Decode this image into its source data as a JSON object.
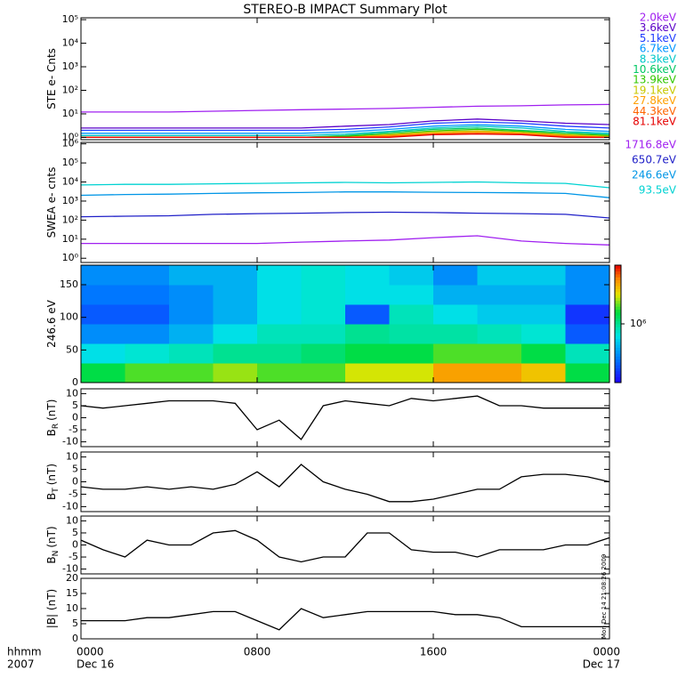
{
  "chart_data": {
    "title": "STEREO-B IMPACT Summary Plot",
    "xlim": [
      0,
      24
    ],
    "xticks": [
      {
        "value": 0,
        "label": "0000"
      },
      {
        "value": 8,
        "label": "0800"
      },
      {
        "value": 16,
        "label": "1600"
      },
      {
        "value": 24,
        "label": "0000"
      }
    ],
    "x_dates": [
      "Dec 16",
      null,
      null,
      "Dec 17"
    ],
    "x_label_top": "hhmm",
    "x_label_bottom": "2007",
    "annotation": "Mon Dec 14 21:08:26 2009",
    "panels": [
      {
        "type": "line",
        "ylabel": "STE e- Cnts",
        "log": true,
        "ylim": [
          0.8,
          120000
        ],
        "yticks": [
          {
            "value": 1,
            "label": "10⁰"
          },
          {
            "value": 10,
            "label": "10¹"
          },
          {
            "value": 100,
            "label": "10²"
          },
          {
            "value": 1000,
            "label": "10³"
          },
          {
            "value": 10000,
            "label": "10⁴"
          },
          {
            "value": 100000,
            "label": "10⁵"
          }
        ],
        "x": [
          0,
          2,
          4,
          6,
          8,
          10,
          12,
          14,
          16,
          18,
          20,
          22,
          24
        ],
        "series": [
          {
            "name": "2.0keV",
            "color": "#a020f0",
            "values": [
              12,
              12,
              12,
              13,
              14,
              15,
              16,
              17,
              19,
              21,
              22,
              24,
              25
            ]
          },
          {
            "name": "3.6keV",
            "color": "#5a00c8",
            "values": [
              2.5,
              2.5,
              2.5,
              2.5,
              2.5,
              2.5,
              3,
              3.5,
              5,
              6,
              5,
              4,
              3.5
            ]
          },
          {
            "name": "5.1keV",
            "color": "#1e3cff",
            "values": [
              2,
              2,
              2,
              2,
              2,
              2,
              2.2,
              2.8,
              4,
              4.5,
              4,
              3,
              2.5
            ]
          },
          {
            "name": "6.7keV",
            "color": "#0096ff",
            "values": [
              1.5,
              1.5,
              1.5,
              1.5,
              1.5,
              1.5,
              1.7,
              2.2,
              3,
              3.5,
              3,
              2.2,
              1.8
            ]
          },
          {
            "name": "8.3keV",
            "color": "#00c8c8",
            "values": [
              1.2,
              1.2,
              1.2,
              1.2,
              1.2,
              1.2,
              1.4,
              1.8,
              2.5,
              3,
              2.5,
              1.8,
              1.5
            ]
          },
          {
            "name": "10.6keV",
            "color": "#00c864",
            "values": [
              1,
              1,
              1,
              1,
              1,
              1,
              1.2,
              1.6,
              2.2,
              2.5,
              2,
              1.6,
              1.3
            ]
          },
          {
            "name": "13.9keV",
            "color": "#32c800",
            "values": [
              1,
              1,
              1,
              1,
              1,
              1,
              1.1,
              1.4,
              1.9,
              2.2,
              1.8,
              1.4,
              1.2
            ]
          },
          {
            "name": "19.1keV",
            "color": "#c8c800",
            "values": [
              1,
              1,
              1,
              1,
              1,
              1,
              1,
              1.3,
              1.7,
              1.9,
              1.6,
              1.3,
              1.1
            ]
          },
          {
            "name": "27.8keV",
            "color": "#ffa000",
            "values": [
              1,
              1,
              1,
              1,
              1,
              1,
              1,
              1.2,
              1.5,
              1.7,
              1.5,
              1.2,
              1
            ]
          },
          {
            "name": "44.3keV",
            "color": "#ff6400",
            "values": [
              1,
              1,
              1,
              1,
              1,
              1,
              1,
              1.1,
              1.4,
              1.5,
              1.4,
              1.1,
              1
            ]
          },
          {
            "name": "81.1keV",
            "color": "#e60000",
            "values": [
              1,
              1,
              1,
              1,
              1,
              1,
              1,
              1,
              1.3,
              1.4,
              1.3,
              1,
              1
            ]
          }
        ]
      },
      {
        "type": "line",
        "ylabel": "SWEA e- cnts",
        "log": true,
        "ylim": [
          0.6,
          1200000
        ],
        "yticks": [
          {
            "value": 1,
            "label": "10⁰"
          },
          {
            "value": 10,
            "label": "10¹"
          },
          {
            "value": 100,
            "label": "10²"
          },
          {
            "value": 1000,
            "label": "10³"
          },
          {
            "value": 10000,
            "label": "10⁴"
          },
          {
            "value": 100000,
            "label": "10⁵"
          },
          {
            "value": 1000000,
            "label": "10⁶"
          }
        ],
        "x": [
          0,
          2,
          4,
          6,
          8,
          10,
          12,
          14,
          16,
          18,
          20,
          22,
          24
        ],
        "series": [
          {
            "name": "1716.8eV",
            "color": "#a020f0",
            "values": [
              6,
              6,
              6,
              6,
              6,
              7,
              8,
              9,
              12,
              15,
              8,
              6,
              5
            ]
          },
          {
            "name": "650.7eV",
            "color": "#2020c8",
            "values": [
              150,
              160,
              170,
              200,
              220,
              230,
              250,
              260,
              250,
              230,
              220,
              200,
              130
            ]
          },
          {
            "name": "246.6eV",
            "color": "#0096e6",
            "values": [
              2000,
              2200,
              2300,
              2500,
              2700,
              2800,
              3000,
              3000,
              2900,
              2800,
              2700,
              2500,
              1500
            ]
          },
          {
            "name": "93.5eV",
            "color": "#00d2d2",
            "values": [
              7000,
              7500,
              7500,
              8000,
              8500,
              9000,
              9500,
              9000,
              9500,
              10000,
              9000,
              8500,
              5000
            ]
          }
        ]
      },
      {
        "type": "heatmap",
        "ylabel": "246.6 eV",
        "ylim": [
          0,
          180
        ],
        "yticks": [
          0,
          50,
          100,
          150
        ],
        "xbins": [
          0,
          2,
          4,
          6,
          8,
          10,
          12,
          14,
          16,
          18,
          20,
          22,
          24
        ],
        "ybins": [
          0,
          30,
          60,
          90,
          120,
          150,
          180
        ],
        "zlim": [
          100000,
          10000000
        ],
        "zlog": true,
        "zticks": [
          {
            "value": 1000000,
            "label": "10⁶"
          }
        ],
        "z": [
          [
            1500000,
            2000000,
            2000000,
            2500000,
            2000000,
            2000000,
            3000000,
            3000000,
            5000000,
            5000000,
            4000000,
            1500000
          ],
          [
            600000,
            700000,
            800000,
            1000000,
            1000000,
            1200000,
            1500000,
            1500000,
            2000000,
            2000000,
            1500000,
            800000
          ],
          [
            300000,
            300000,
            400000,
            600000,
            800000,
            800000,
            1000000,
            900000,
            900000,
            800000,
            700000,
            200000
          ],
          [
            200000,
            200000,
            300000,
            400000,
            600000,
            700000,
            200000,
            800000,
            600000,
            500000,
            500000,
            150000
          ],
          [
            250000,
            250000,
            300000,
            400000,
            600000,
            700000,
            600000,
            600000,
            400000,
            400000,
            400000,
            300000
          ],
          [
            300000,
            300000,
            400000,
            400000,
            600000,
            700000,
            600000,
            500000,
            300000,
            500000,
            500000,
            300000
          ]
        ]
      },
      {
        "type": "line",
        "ylabel": "B",
        "ylabel_sub": "R",
        "ylabel_unit": "(nT)",
        "ylim": [
          -12,
          12
        ],
        "yticks": [
          -10,
          -5,
          0,
          5,
          10
        ],
        "x": [
          0,
          1,
          2,
          3,
          4,
          5,
          6,
          7,
          8,
          9,
          10,
          11,
          12,
          13,
          14,
          15,
          16,
          17,
          18,
          19,
          20,
          21,
          22,
          23,
          24
        ],
        "series": [
          {
            "color": "#000000",
            "values": [
              5,
              4,
              5,
              6,
              7,
              7,
              7,
              6,
              -5,
              -1,
              -9,
              5,
              7,
              6,
              5,
              8,
              7,
              8,
              9,
              5,
              5,
              4,
              4,
              4,
              4
            ]
          }
        ]
      },
      {
        "type": "line",
        "ylabel": "B",
        "ylabel_sub": "T",
        "ylabel_unit": "(nT)",
        "ylim": [
          -12,
          12
        ],
        "yticks": [
          -10,
          -5,
          0,
          5,
          10
        ],
        "x": [
          0,
          1,
          2,
          3,
          4,
          5,
          6,
          7,
          8,
          9,
          10,
          11,
          12,
          13,
          14,
          15,
          16,
          17,
          18,
          19,
          20,
          21,
          22,
          23,
          24
        ],
        "series": [
          {
            "color": "#000000",
            "values": [
              -2,
              -3,
              -3,
              -2,
              -3,
              -2,
              -3,
              -1,
              4,
              -2,
              7,
              0,
              -3,
              -5,
              -8,
              -8,
              -7,
              -5,
              -3,
              -3,
              2,
              3,
              3,
              2,
              0
            ]
          }
        ]
      },
      {
        "type": "line",
        "ylabel": "B",
        "ylabel_sub": "N",
        "ylabel_unit": "(nT)",
        "ylim": [
          -12,
          12
        ],
        "yticks": [
          -10,
          -5,
          0,
          5,
          10
        ],
        "x": [
          0,
          1,
          2,
          3,
          4,
          5,
          6,
          7,
          8,
          9,
          10,
          11,
          12,
          13,
          14,
          15,
          16,
          17,
          18,
          19,
          20,
          21,
          22,
          23,
          24
        ],
        "series": [
          {
            "color": "#000000",
            "values": [
              2,
              -2,
              -5,
              2,
              0,
              0,
              5,
              6,
              2,
              -5,
              -7,
              -5,
              -5,
              5,
              5,
              -2,
              -3,
              -3,
              -5,
              -2,
              -2,
              -2,
              0,
              0,
              3
            ]
          }
        ]
      },
      {
        "type": "line",
        "ylabel": "|B| (nT)",
        "ylim": [
          0,
          20
        ],
        "yticks": [
          0,
          5,
          10,
          15,
          20
        ],
        "x": [
          0,
          1,
          2,
          3,
          4,
          5,
          6,
          7,
          8,
          9,
          10,
          11,
          12,
          13,
          14,
          15,
          16,
          17,
          18,
          19,
          20,
          21,
          22,
          23,
          24
        ],
        "series": [
          {
            "color": "#000000",
            "values": [
              6,
              6,
              6,
              7,
              7,
              8,
              9,
              9,
              6,
              3,
              10,
              7,
              8,
              9,
              9,
              9,
              9,
              8,
              8,
              7,
              4,
              4,
              4,
              4,
              4
            ]
          }
        ]
      }
    ]
  }
}
